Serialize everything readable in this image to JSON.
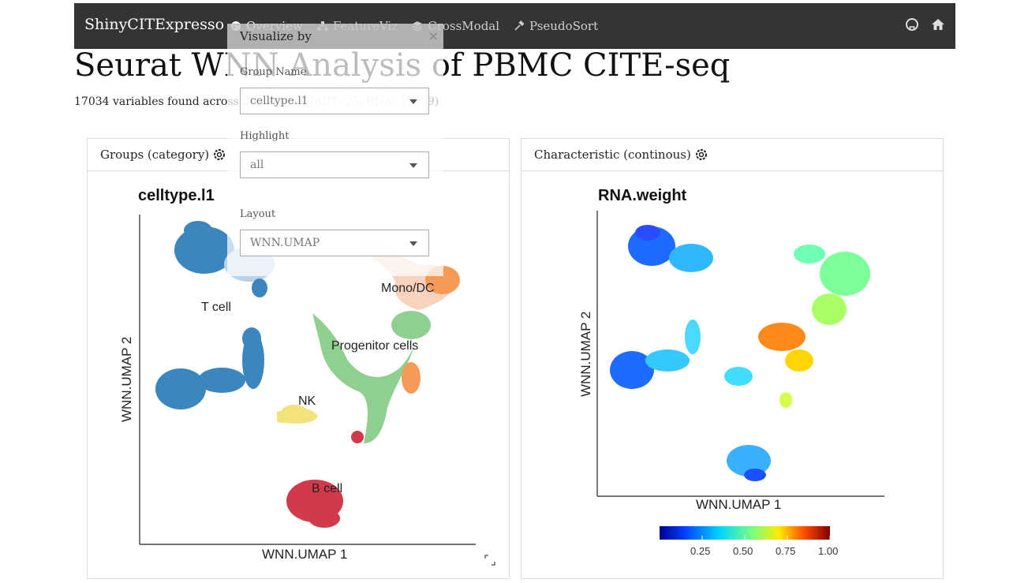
{
  "navbar": {
    "brand": "ShinyCITExpresso",
    "tabs": [
      {
        "label": "Overview",
        "icon": "palette-icon",
        "active": true
      },
      {
        "label": "FeatureViz",
        "icon": "sitemap-icon",
        "active": false
      },
      {
        "label": "CrossModal",
        "icon": "layer-group-icon",
        "active": false
      },
      {
        "label": "PseudoSort",
        "icon": "hammer-icon",
        "active": false
      }
    ],
    "right_icons": [
      "github-icon",
      "home-icon"
    ]
  },
  "page": {
    "title": "Seurat WNN Analysis of PBMC CITE-seq",
    "subtitle": "17034 variables found across 2 cell types (ADT: 25, RNA: 17009)"
  },
  "left_card": {
    "header": "Groups (category)",
    "header_icon": "gear-icon",
    "plot_title": "celltype.l1",
    "xlabel": "WNN.UMAP 1",
    "ylabel": "WNN.UMAP 2",
    "cluster_labels": [
      "T cell",
      "Mono/DC",
      "Progenitor cells",
      "NK",
      "B cell"
    ]
  },
  "right_card": {
    "header": "Characteristic (continous)",
    "header_icon": "gear-icon",
    "plot_title": "RNA.weight",
    "xlabel": "WNN.UMAP 1",
    "ylabel": "WNN.UMAP 2",
    "colorbar_ticks": [
      "0.25",
      "0.50",
      "0.75",
      "1.00"
    ]
  },
  "popover": {
    "title": "Visualize by",
    "close": "×",
    "group_name_label": "Group Name",
    "group_name_value": "celltype.l1",
    "highlight_label": "Highlight",
    "highlight_value": "all",
    "layout_label": "Layout",
    "layout_value": "WNN.UMAP"
  },
  "colors": {
    "navbar_bg": "#343434",
    "t_cell": "#3b86bf",
    "mono_dc": "#f79a58",
    "progenitor": "#8fcf8f",
    "nk": "#f2e27a",
    "b_cell": "#d13a4b",
    "other_t": "#b8d3ea"
  }
}
